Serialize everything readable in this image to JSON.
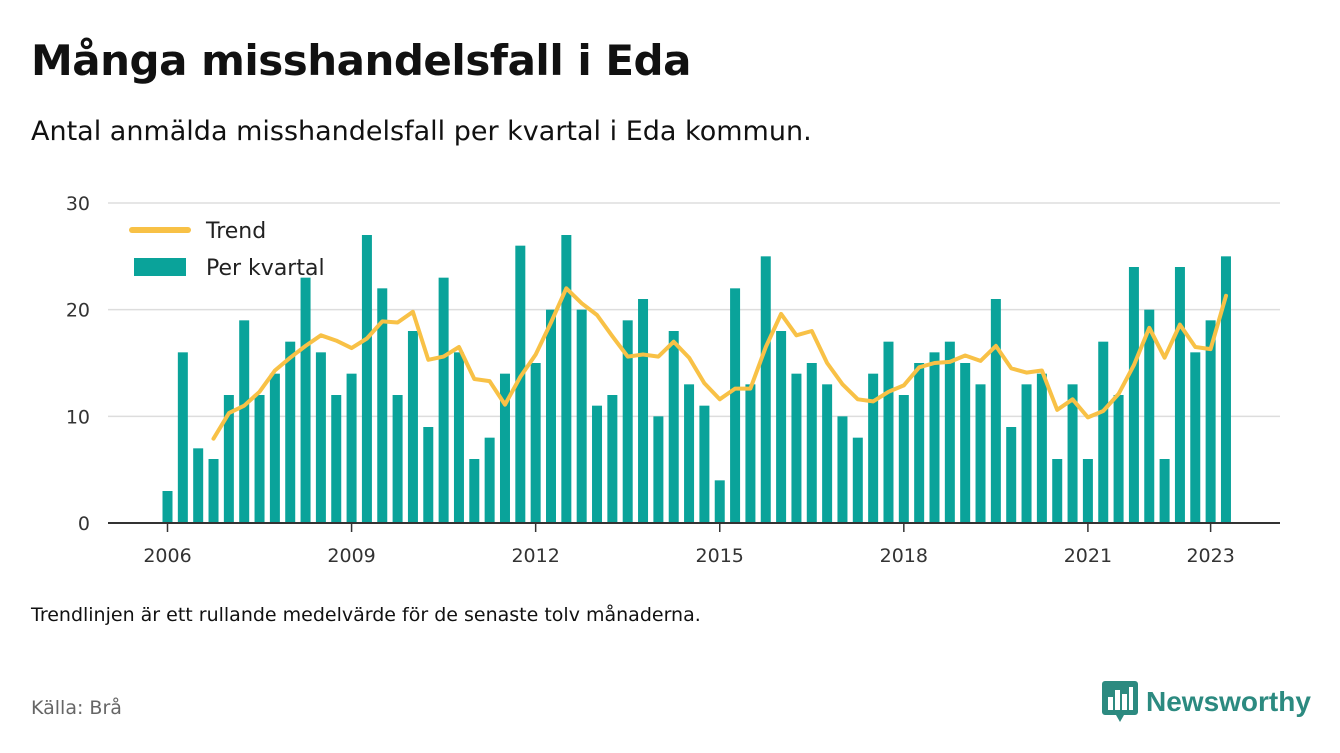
{
  "title": "Många misshandelsfall i Eda",
  "subtitle": "Antal anmälda misshandelsfall per kvartal i Eda kommun.",
  "note": "Trendlinjen är ett rullande medelvärde för de senaste tolv månaderna.",
  "source": "Källa: Brå",
  "brand": {
    "name": "Newsworthy",
    "icon": "bar-chart-logo-icon"
  },
  "colors": {
    "bar": "#0aa39a",
    "trend": "#f8c146",
    "grid": "#dddddd",
    "axis": "#333333",
    "brand": "#2c8a80"
  },
  "chart_data": {
    "type": "bar",
    "title": "Många misshandelsfall i Eda",
    "xlabel": "",
    "ylabel": "",
    "ylim": [
      0,
      30
    ],
    "yticks": [
      0,
      10,
      20,
      30
    ],
    "xticks": [
      "2006",
      "2009",
      "2012",
      "2015",
      "2018",
      "2021",
      "2023"
    ],
    "grid": true,
    "legend_position": "top-left",
    "categories": [
      "2006Q1",
      "2006Q2",
      "2006Q3",
      "2006Q4",
      "2007Q1",
      "2007Q2",
      "2007Q3",
      "2007Q4",
      "2008Q1",
      "2008Q2",
      "2008Q3",
      "2008Q4",
      "2009Q1",
      "2009Q2",
      "2009Q3",
      "2009Q4",
      "2010Q1",
      "2010Q2",
      "2010Q3",
      "2010Q4",
      "2011Q1",
      "2011Q2",
      "2011Q3",
      "2011Q4",
      "2012Q1",
      "2012Q2",
      "2012Q3",
      "2012Q4",
      "2013Q1",
      "2013Q2",
      "2013Q3",
      "2013Q4",
      "2014Q1",
      "2014Q2",
      "2014Q3",
      "2014Q4",
      "2015Q1",
      "2015Q2",
      "2015Q3",
      "2015Q4",
      "2016Q1",
      "2016Q2",
      "2016Q3",
      "2016Q4",
      "2017Q1",
      "2017Q2",
      "2017Q3",
      "2017Q4",
      "2018Q1",
      "2018Q2",
      "2018Q3",
      "2018Q4",
      "2019Q1",
      "2019Q2",
      "2019Q3",
      "2019Q4",
      "2020Q1",
      "2020Q2",
      "2020Q3",
      "2020Q4",
      "2021Q1",
      "2021Q2",
      "2021Q3",
      "2021Q4",
      "2022Q1",
      "2022Q2",
      "2022Q3",
      "2022Q4",
      "2023Q1",
      "2023Q2"
    ],
    "series": [
      {
        "name": "Per kvartal",
        "type": "bar",
        "values": [
          3,
          16,
          7,
          6,
          12,
          19,
          12,
          14,
          17,
          23,
          16,
          12,
          14,
          27,
          22,
          12,
          18,
          9,
          23,
          16,
          6,
          8,
          14,
          26,
          15,
          20,
          27,
          20,
          11,
          12,
          19,
          21,
          10,
          18,
          13,
          11,
          4,
          22,
          13,
          25,
          18,
          14,
          15,
          13,
          10,
          8,
          14,
          17,
          12,
          15,
          16,
          17,
          15,
          13,
          21,
          9,
          13,
          14,
          6,
          13,
          6,
          17,
          12,
          24,
          20,
          6,
          24,
          16,
          19,
          25
        ]
      },
      {
        "name": "Trend",
        "type": "line",
        "values": [
          null,
          null,
          null,
          7.9,
          10.3,
          11.0,
          12.3,
          14.3,
          15.5,
          16.6,
          17.6,
          17.1,
          16.4,
          17.3,
          18.9,
          18.8,
          19.8,
          15.3,
          15.6,
          16.5,
          13.5,
          13.3,
          11.1,
          13.7,
          15.8,
          18.8,
          22.0,
          20.6,
          19.5,
          17.5,
          15.6,
          15.8,
          15.6,
          17.0,
          15.5,
          13.1,
          11.6,
          12.6,
          12.6,
          16.5,
          19.6,
          17.6,
          18.0,
          15.0,
          13.0,
          11.6,
          11.4,
          12.3,
          12.9,
          14.6,
          15.0,
          15.1,
          15.7,
          15.2,
          16.6,
          14.5,
          14.1,
          14.3,
          10.6,
          11.6,
          9.9,
          10.5,
          12.1,
          14.8,
          18.3,
          15.5,
          18.6,
          16.5,
          16.3,
          21.3
        ]
      }
    ]
  }
}
